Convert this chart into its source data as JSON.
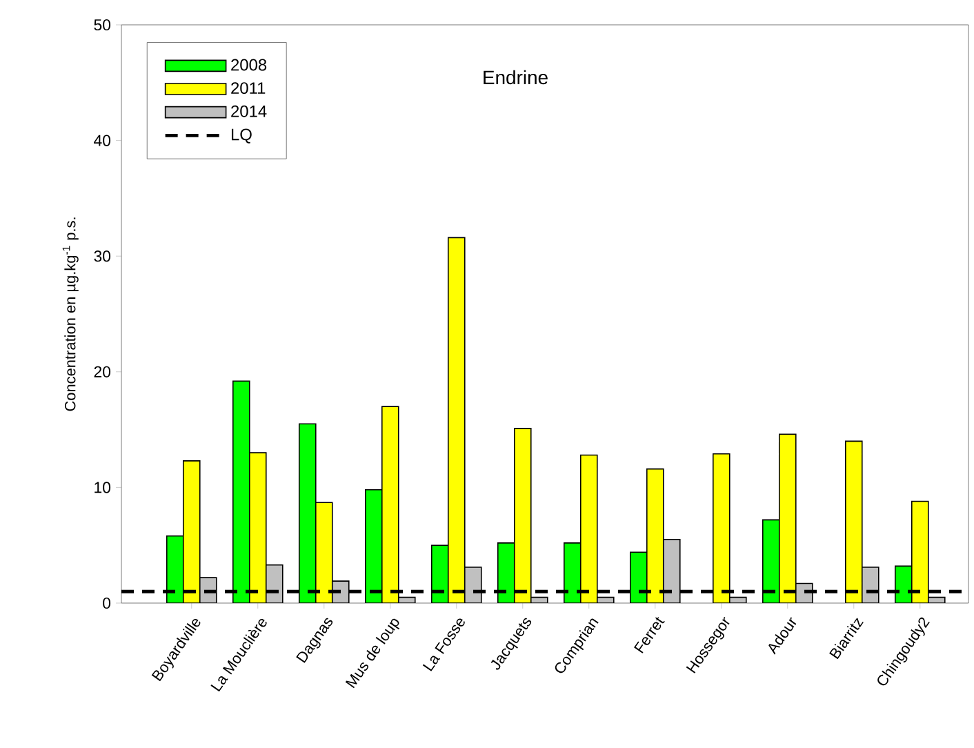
{
  "chart_data": {
    "type": "bar",
    "title": "Endrine",
    "ylabel": "Concentration en µg.kg$^{-1}$ p.s.",
    "categories": [
      "Boyardville",
      "La Mouclière",
      "Dagnas",
      "Mus de loup",
      "La Fosse",
      "Jacquets",
      "Comprian",
      "Ferret",
      "Hossegor",
      "Adour",
      "Biarritz",
      "Chingoudy2"
    ],
    "series": [
      {
        "name": "2008",
        "color": "#00ff00",
        "values": [
          5.8,
          19.2,
          15.5,
          9.8,
          5.0,
          5.2,
          5.2,
          4.4,
          null,
          7.2,
          null,
          3.2
        ]
      },
      {
        "name": "2011",
        "color": "#ffff00",
        "values": [
          12.3,
          13.0,
          8.7,
          17.0,
          31.6,
          15.1,
          12.8,
          11.6,
          12.9,
          14.6,
          14.0,
          8.8
        ]
      },
      {
        "name": "2014",
        "color": "#c0c0c0",
        "values": [
          2.2,
          3.3,
          1.9,
          0.5,
          3.1,
          0.5,
          0.5,
          5.5,
          0.5,
          1.7,
          3.1,
          0.5
        ]
      }
    ],
    "ref_lines": [
      {
        "axis": "y",
        "value": 1,
        "label": "LQ",
        "color": "#000000",
        "line_style": "dashed"
      }
    ],
    "ylim": [
      0,
      50
    ],
    "yticks": [
      0,
      10,
      20,
      30,
      40,
      50
    ],
    "legend": "top left"
  }
}
